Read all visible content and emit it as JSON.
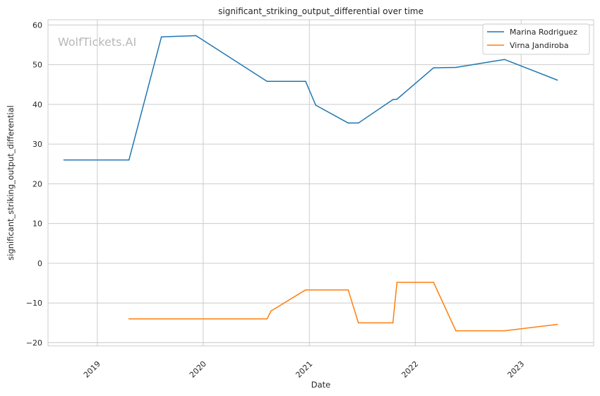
{
  "chart_data": {
    "type": "line",
    "title": "significant_striking_output_differential over time",
    "xlabel": "Date",
    "ylabel": "significant_striking_output_differential",
    "watermark": "WolfTickets.AI",
    "x_ticks": [
      "2019",
      "2020",
      "2021",
      "2022",
      "2023"
    ],
    "y_ticks": [
      60,
      50,
      40,
      30,
      20,
      10,
      0,
      -10,
      -20
    ],
    "xlim": [
      "2018-07-15",
      "2023-09-08"
    ],
    "ylim": [
      -20.8,
      61.3
    ],
    "grid": true,
    "legend_position": "top-right",
    "colors": {
      "series_1": "#1f77b4",
      "series_2": "#ff7f0e",
      "grid": "#cccccc",
      "frame": "#cccccc"
    },
    "series": [
      {
        "name": "Marina Rodriguez",
        "color": "#1f77b4",
        "points": [
          [
            "2018-09-08",
            26.0
          ],
          [
            "2019-04-20",
            26.0
          ],
          [
            "2019-08-10",
            57.0
          ],
          [
            "2019-12-07",
            57.3
          ],
          [
            "2020-08-08",
            45.8
          ],
          [
            "2020-12-19",
            45.8
          ],
          [
            "2021-01-23",
            39.8
          ],
          [
            "2021-05-15",
            35.3
          ],
          [
            "2021-06-19",
            35.3
          ],
          [
            "2021-10-16",
            41.2
          ],
          [
            "2021-10-30",
            41.3
          ],
          [
            "2022-03-05",
            49.2
          ],
          [
            "2022-05-21",
            49.3
          ],
          [
            "2022-11-05",
            51.3
          ],
          [
            "2023-05-06",
            46.1
          ]
        ]
      },
      {
        "name": "Virna Jandiroba",
        "color": "#ff7f0e",
        "points": [
          [
            "2019-04-20",
            -14.0
          ],
          [
            "2020-08-08",
            -14.0
          ],
          [
            "2020-08-22",
            -12.0
          ],
          [
            "2020-12-19",
            -6.7
          ],
          [
            "2021-05-15",
            -6.7
          ],
          [
            "2021-06-19",
            -15.0
          ],
          [
            "2021-10-16",
            -15.0
          ],
          [
            "2021-10-30",
            -4.8
          ],
          [
            "2022-03-05",
            -4.8
          ],
          [
            "2022-05-21",
            -17.0
          ],
          [
            "2022-11-05",
            -17.0
          ],
          [
            "2023-05-06",
            -15.4
          ]
        ]
      }
    ]
  }
}
